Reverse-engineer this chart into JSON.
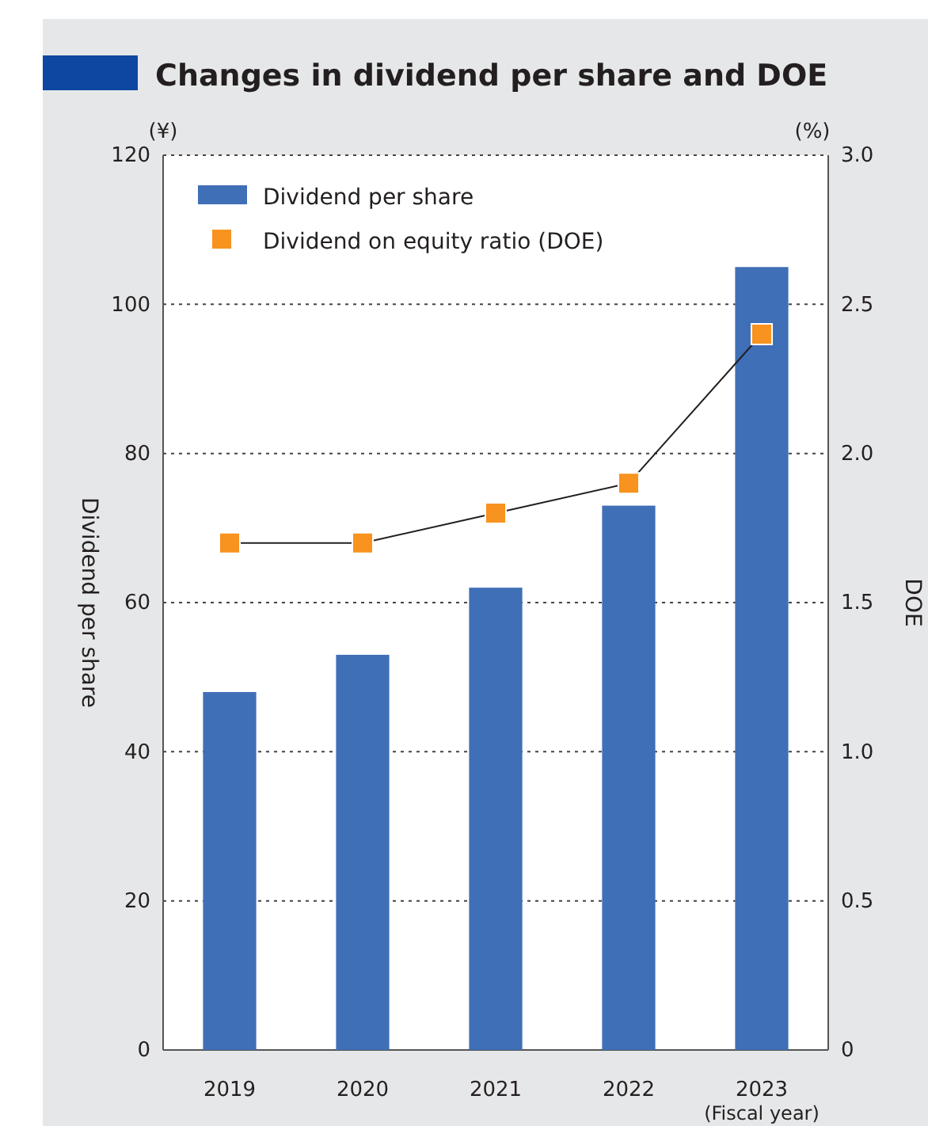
{
  "chart_data": {
    "type": "bar",
    "title": "Changes in dividend per share and DOE",
    "xlabel": "(Fiscal year)",
    "ylabel": "Dividend per share",
    "y2label": "DOE",
    "annotations": [
      "(¥)",
      "(%)"
    ],
    "categories": [
      "2019",
      "2020",
      "2021",
      "2022",
      "2023"
    ],
    "series": [
      {
        "name": "Dividend per share",
        "color": "#3f6fb6",
        "values": [
          48,
          53,
          62,
          73,
          105
        ]
      },
      {
        "name": "Dividend on equity ratio (DOE)",
        "type": "line",
        "axis": "y2",
        "color": "#f7931e",
        "marker": "square",
        "values": [
          1.7,
          1.7,
          1.8,
          1.9,
          2.4
        ]
      }
    ],
    "ylim": [
      0,
      120
    ],
    "yticks": [
      0,
      20,
      40,
      60,
      80,
      100,
      120
    ],
    "y2lim": [
      0,
      3
    ],
    "y2ticks": [
      0,
      {
        "value": 0.5,
        "label": "0.5"
      },
      {
        "value": 1,
        "label": "1.0"
      },
      {
        "value": 1.5,
        "label": "1.5"
      },
      {
        "value": 2,
        "label": "2.0"
      },
      {
        "value": 2.5,
        "label": "2.5"
      },
      {
        "value": 3,
        "label": "3.0"
      }
    ],
    "grid": "y",
    "legend": "top left"
  }
}
